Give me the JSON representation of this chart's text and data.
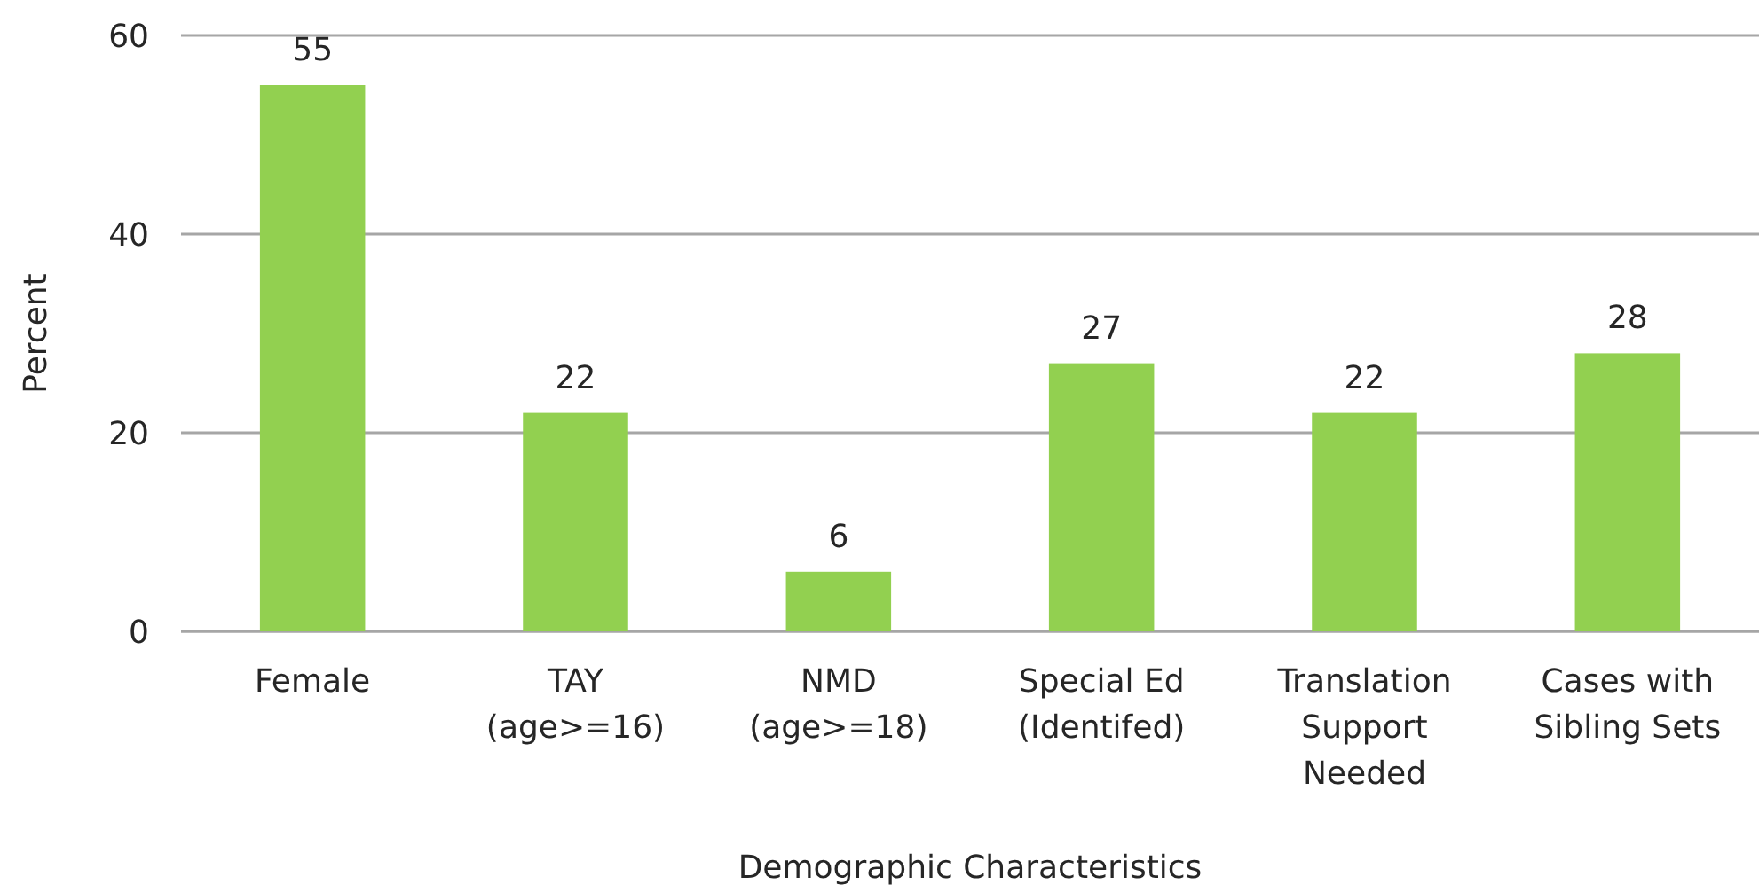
{
  "chart_data": {
    "type": "bar",
    "xlabel": "Demographic Characteristics",
    "ylabel": "Percent",
    "categories": [
      "Female",
      "TAY\n(age>=16)",
      "NMD\n(age>=18)",
      "Special Ed\n(Identifed)",
      "Translation\nSupport\nNeeded",
      "Cases with\nSibling Sets"
    ],
    "values": [
      55,
      22,
      6,
      27,
      22,
      28
    ],
    "color": "#92d050",
    "ylim": [
      0,
      60
    ],
    "yticks": [
      0,
      20,
      40,
      60
    ],
    "grid": "y",
    "data_labels": true
  }
}
